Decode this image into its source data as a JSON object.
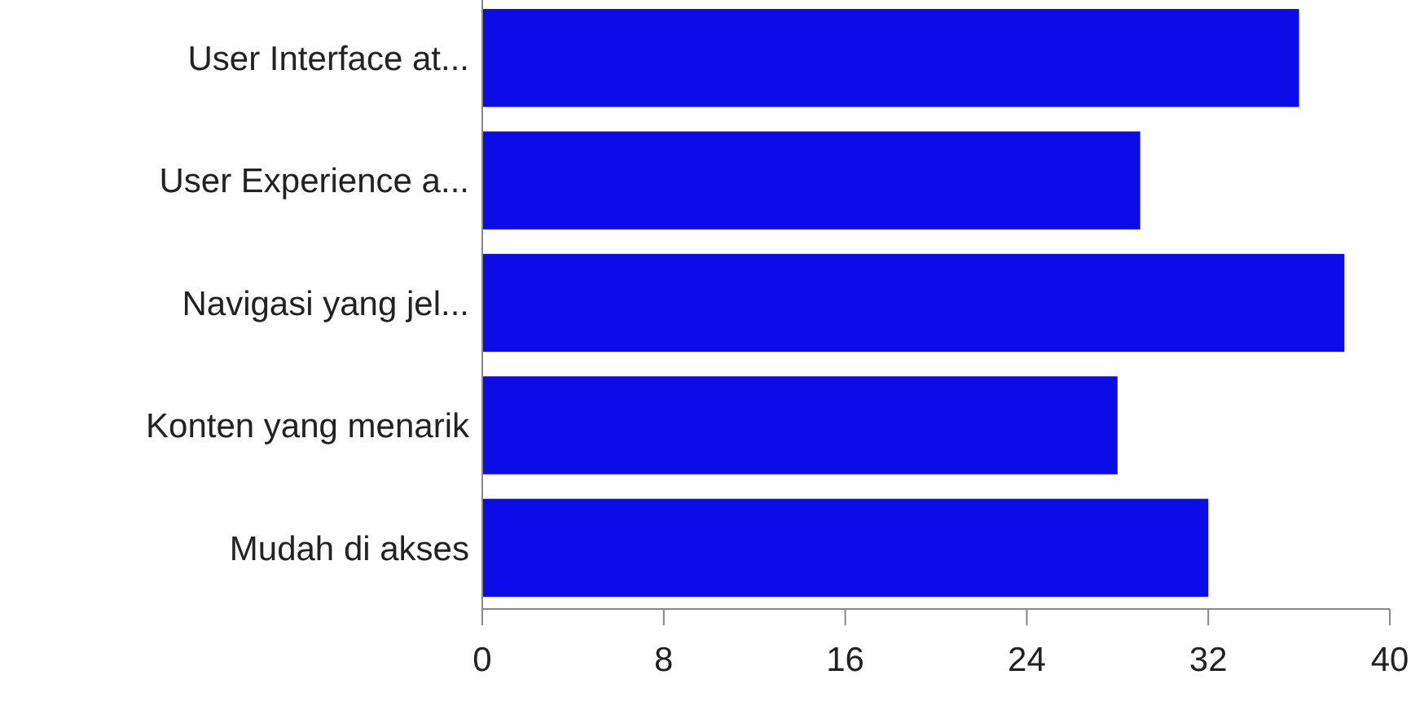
{
  "chart_data": {
    "type": "bar",
    "orientation": "horizontal",
    "categories": [
      "User Interface at...",
      "User Experience a...",
      "Navigasi yang jel...",
      "Konten yang menarik",
      "Mudah di akses"
    ],
    "values": [
      36,
      29,
      38,
      28,
      32
    ],
    "color": "#0c0ce8",
    "xlim": [
      0,
      40
    ],
    "xticks": [
      0,
      8,
      16,
      24,
      32,
      40
    ],
    "grid": false
  }
}
